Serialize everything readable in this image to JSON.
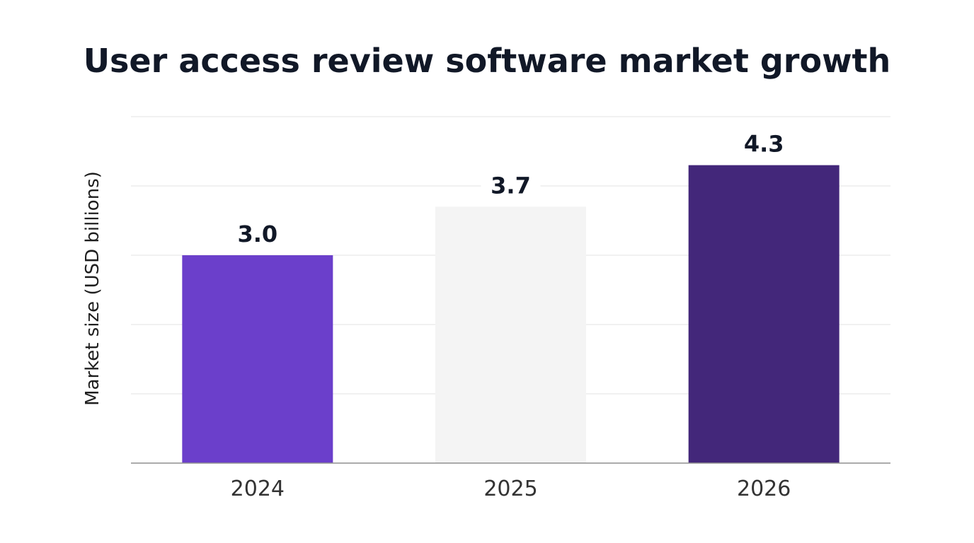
{
  "chart_data": {
    "type": "bar",
    "title": "User access review software market growth",
    "xlabel": "",
    "ylabel": "Market size (USD billions)",
    "categories": [
      "2024",
      "2025",
      "2026"
    ],
    "series": [
      {
        "values": [
          3.0,
          3.7,
          4.3
        ],
        "colors": [
          "#6b3fcb",
          "#f4f4f4",
          "#43277a"
        ]
      }
    ],
    "data_labels": [
      "3.0",
      "3.7",
      "4.3"
    ],
    "ylim": [
      0,
      5
    ],
    "grid": true,
    "legend": "none"
  }
}
